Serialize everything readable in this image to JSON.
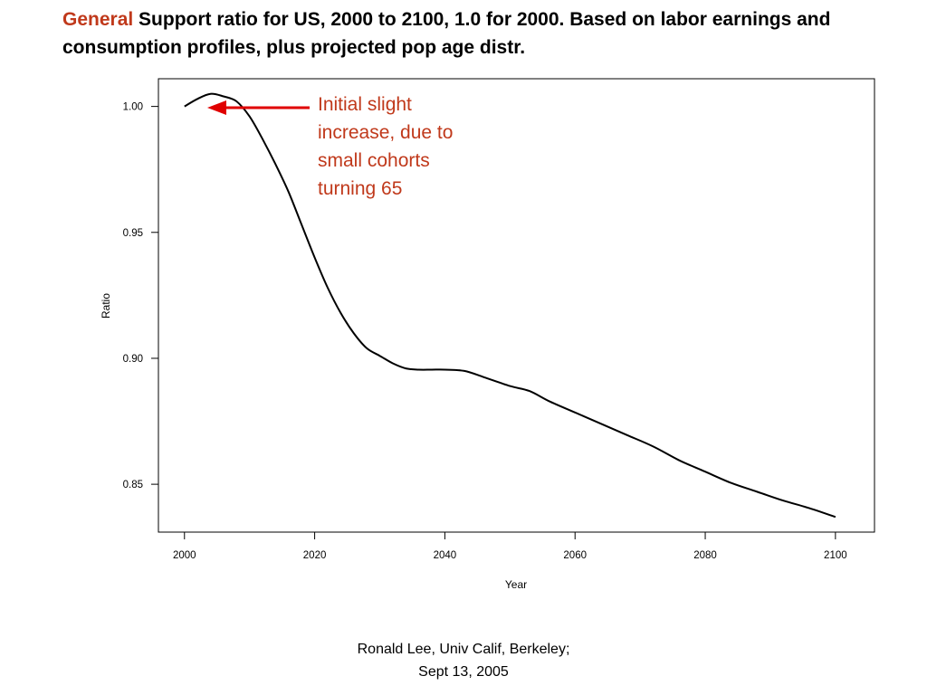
{
  "slide": {
    "title_accent": "General",
    "title_rest": " Support ratio for US, 2000 to 2100, 1.0 for 2000. Based on labor earnings and consumption profiles, plus projected pop age distr.",
    "annotation": "Initial slight\nincrease, due to\nsmall cohorts\nturning 65",
    "footer_line1": "Ronald Lee, Univ Calif, Berkeley;",
    "footer_line2": "Sept 13, 2005"
  },
  "colors": {
    "accent": "#c0391b",
    "arrow": "#e00000",
    "line": "#000000"
  },
  "chart_data": {
    "type": "line",
    "title": "",
    "xlabel": "Year",
    "ylabel": "Ratio",
    "xlim": [
      1996,
      2106
    ],
    "ylim": [
      0.831,
      1.011
    ],
    "xticks": [
      2000,
      2020,
      2040,
      2060,
      2080,
      2100
    ],
    "xtick_labels": [
      "2000",
      "2020",
      "2040",
      "2060",
      "2080",
      "2100"
    ],
    "yticks": [
      0.85,
      0.9,
      0.95,
      1.0
    ],
    "ytick_labels": [
      "0.85",
      "0.90",
      "0.95",
      "1.00"
    ],
    "grid": false,
    "series": [
      {
        "x": [
          2000,
          2002,
          2004,
          2006,
          2008,
          2010,
          2012,
          2014,
          2016,
          2018,
          2020,
          2022,
          2024,
          2026,
          2028,
          2030,
          2032,
          2034,
          2036,
          2038,
          2040,
          2043,
          2046,
          2050,
          2053,
          2056,
          2060,
          2064,
          2068,
          2072,
          2076,
          2080,
          2084,
          2088,
          2092,
          2096,
          2100
        ],
        "y": [
          1.0,
          1.003,
          1.005,
          1.004,
          1.002,
          0.996,
          0.987,
          0.977,
          0.966,
          0.953,
          0.94,
          0.928,
          0.918,
          0.91,
          0.904,
          0.901,
          0.898,
          0.896,
          0.8955,
          0.8955,
          0.8955,
          0.895,
          0.8925,
          0.889,
          0.887,
          0.883,
          0.8785,
          0.874,
          0.8695,
          0.865,
          0.8595,
          0.855,
          0.8505,
          0.847,
          0.8435,
          0.8405,
          0.837
        ]
      }
    ]
  }
}
